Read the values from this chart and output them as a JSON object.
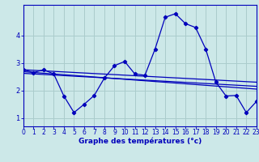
{
  "xlabel": "Graphe des températures (°c)",
  "background_color": "#cce8e8",
  "line_color": "#0000bb",
  "grid_color": "#aacccc",
  "x_data": [
    0,
    1,
    2,
    3,
    4,
    5,
    6,
    7,
    8,
    9,
    10,
    11,
    12,
    13,
    14,
    15,
    16,
    17,
    18,
    19,
    20,
    21,
    22,
    23
  ],
  "temp_data": [
    2.75,
    2.65,
    2.75,
    2.6,
    1.8,
    1.2,
    1.5,
    1.82,
    2.45,
    2.9,
    3.05,
    2.6,
    2.55,
    3.5,
    4.65,
    4.78,
    4.42,
    4.28,
    3.5,
    2.3,
    1.8,
    1.82,
    1.2,
    1.6
  ],
  "trend1_x": [
    0,
    23
  ],
  "trend1_y": [
    2.75,
    2.3
  ],
  "trend2_x": [
    0,
    23
  ],
  "trend2_y": [
    2.68,
    2.05
  ],
  "trend3_x": [
    0,
    23
  ],
  "trend3_y": [
    2.62,
    2.15
  ],
  "xlim": [
    0,
    23
  ],
  "ylim": [
    0.7,
    5.1
  ],
  "yticks": [
    1,
    2,
    3,
    4
  ],
  "xticks": [
    0,
    1,
    2,
    3,
    4,
    5,
    6,
    7,
    8,
    9,
    10,
    11,
    12,
    13,
    14,
    15,
    16,
    17,
    18,
    19,
    20,
    21,
    22,
    23
  ],
  "tick_fontsize": 5.5,
  "xlabel_fontsize": 6.5
}
